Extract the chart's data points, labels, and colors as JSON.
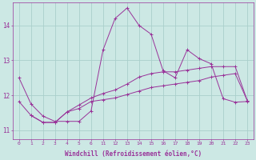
{
  "xlabel": "Windchill (Refroidissement éolien,°C)",
  "background_color": "#cce8e4",
  "grid_color": "#aacfcb",
  "line_color": "#993399",
  "ylim": [
    10.75,
    14.65
  ],
  "yticks": [
    11,
    12,
    13,
    14
  ],
  "xlabels": [
    "0",
    "1",
    "2",
    "3",
    "4",
    "5",
    "6",
    "11",
    "12",
    "13",
    "14",
    "15",
    "16",
    "17",
    "18",
    "19",
    "20",
    "21",
    "22",
    "23"
  ],
  "series": [
    {
      "pos": [
        0,
        1,
        2,
        3,
        4,
        5,
        6,
        7,
        8,
        9,
        10,
        11,
        12,
        13,
        14,
        15,
        16,
        17,
        18,
        19
      ],
      "y": [
        12.5,
        11.75,
        11.4,
        11.25,
        11.25,
        11.25,
        11.55,
        13.3,
        14.2,
        14.5,
        14.0,
        13.75,
        12.7,
        12.5,
        13.3,
        13.05,
        12.9,
        11.9,
        11.8,
        11.82
      ]
    },
    {
      "pos": [
        0,
        1,
        2,
        3,
        4,
        5,
        6,
        7,
        8,
        9,
        10,
        11,
        12,
        13,
        14,
        15,
        16,
        17,
        18,
        19
      ],
      "y": [
        11.82,
        11.42,
        11.22,
        11.22,
        11.52,
        11.72,
        11.92,
        12.05,
        12.15,
        12.32,
        12.52,
        12.62,
        12.67,
        12.67,
        12.72,
        12.77,
        12.82,
        12.82,
        12.82,
        11.85
      ]
    },
    {
      "pos": [
        1,
        2,
        3,
        4,
        5,
        6,
        7,
        8,
        9,
        10,
        11,
        12,
        13,
        14,
        15,
        16,
        17,
        18,
        19
      ],
      "y": [
        11.42,
        11.22,
        11.22,
        11.52,
        11.62,
        11.82,
        11.87,
        11.92,
        12.02,
        12.12,
        12.22,
        12.27,
        12.32,
        12.37,
        12.42,
        12.52,
        12.57,
        12.62,
        11.85
      ]
    }
  ]
}
